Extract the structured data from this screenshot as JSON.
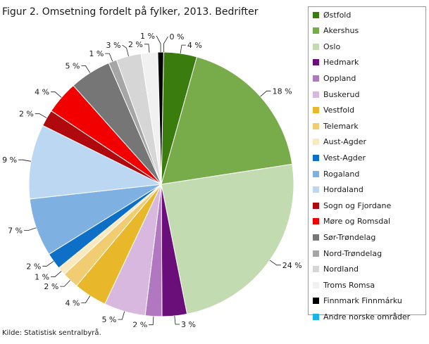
{
  "chart_data": {
    "type": "pie",
    "title": "Figur 2. Omsetning fordelt på fylker, 2013. Bedrifter",
    "source": "Kilde: Statistisk sentralbyrå.",
    "legend_position": "right",
    "slices": [
      {
        "name": "Østfold",
        "value": 4,
        "label": "4 %",
        "color": "#3a7c0d"
      },
      {
        "name": "Akershus",
        "value": 18,
        "label": "18 %",
        "color": "#78ab4a"
      },
      {
        "name": "Oslo",
        "value": 24,
        "label": "24 %",
        "color": "#c3dbb0"
      },
      {
        "name": "Hedmark",
        "value": 3,
        "label": "3 %",
        "color": "#6a0f7a"
      },
      {
        "name": "Oppland",
        "value": 2,
        "label": "2 %",
        "color": "#b178c1"
      },
      {
        "name": "Buskerud",
        "value": 5,
        "label": "5 %",
        "color": "#d9b8df"
      },
      {
        "name": "Vestfold",
        "value": 4,
        "label": "4 %",
        "color": "#e8b72a"
      },
      {
        "name": "Telemark",
        "value": 2,
        "label": "2 %",
        "color": "#f1cc70"
      },
      {
        "name": "Aust-Agder",
        "value": 1,
        "label": "1 %",
        "color": "#f9e9c1"
      },
      {
        "name": "Vest-Agder",
        "value": 2,
        "label": "2 %",
        "color": "#0e6fc7"
      },
      {
        "name": "Rogaland",
        "value": 7,
        "label": "7 %",
        "color": "#7fb0e2"
      },
      {
        "name": "Hordaland",
        "value": 9,
        "label": "9 %",
        "color": "#bbd7f2"
      },
      {
        "name": "Sogn og Fjordane",
        "value": 2,
        "label": "2 %",
        "color": "#b0090d"
      },
      {
        "name": "Møre og Romsdal",
        "value": 4,
        "label": "4 %",
        "color": "#f20000"
      },
      {
        "name": "Sør-Trøndelag",
        "value": 5,
        "label": "5 %",
        "color": "#767676"
      },
      {
        "name": "Nord-Trøndelag",
        "value": 1,
        "label": "1 %",
        "color": "#a6a6a6"
      },
      {
        "name": "Nordland",
        "value": 3,
        "label": "3 %",
        "color": "#d6d6d6"
      },
      {
        "name": "Troms Romsa",
        "value": 2,
        "label": "2 %",
        "color": "#f1f1f1"
      },
      {
        "name": "Finnmark Finnmárku",
        "value": 0.7,
        "label": "1 %",
        "color": "#000000"
      },
      {
        "name": "Andre norske områder",
        "value": 0,
        "label": "0 %",
        "color": "#19b4e8"
      }
    ]
  }
}
